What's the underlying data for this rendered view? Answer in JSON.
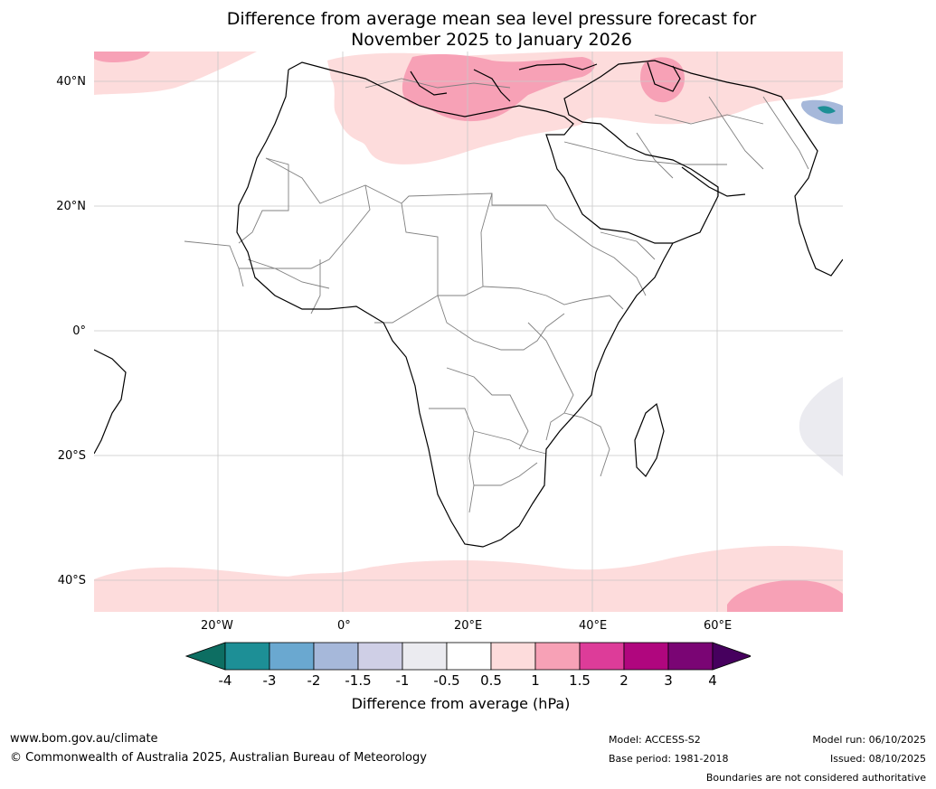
{
  "title": {
    "line1": "Difference from average mean sea level pressure forecast for",
    "line2": "November 2025 to January 2026"
  },
  "map": {
    "lat_labels": [
      "40°N",
      "20°N",
      "0°",
      "20°S",
      "40°S"
    ],
    "lon_labels": [
      "20°W",
      "0°",
      "20°E",
      "40°E",
      "60°E"
    ],
    "colors": {
      "ocean": "#ffffff",
      "land_line": "#000000",
      "border_line": "#808080",
      "grid": "#c8c8c8"
    }
  },
  "legend": {
    "title": "Difference from average (hPa)",
    "ticks": [
      "-4",
      "-3",
      "-2",
      "-1.5",
      "-1",
      "-0.5",
      "0.5",
      "1",
      "1.5",
      "2",
      "3",
      "4"
    ],
    "colors": [
      "#0d6e62",
      "#1d8f96",
      "#6aa8d0",
      "#a6b8da",
      "#cfcfe6",
      "#ebebf0",
      "#ffffff",
      "#fddcdc",
      "#f7a1b6",
      "#dd3c99",
      "#b0067e",
      "#7a0574",
      "#46005e"
    ]
  },
  "footer": {
    "website": "www.bom.gov.au/climate",
    "copyright": "© Commonwealth of Australia 2025, Australian Bureau of Meteorology",
    "model": "Model: ACCESS-S2",
    "base_period": "Base period: 1981-2018",
    "model_run": "Model run: 06/10/2025",
    "issued": "Issued: 08/10/2025",
    "disclaimer": "Boundaries are not considered authoritative"
  }
}
